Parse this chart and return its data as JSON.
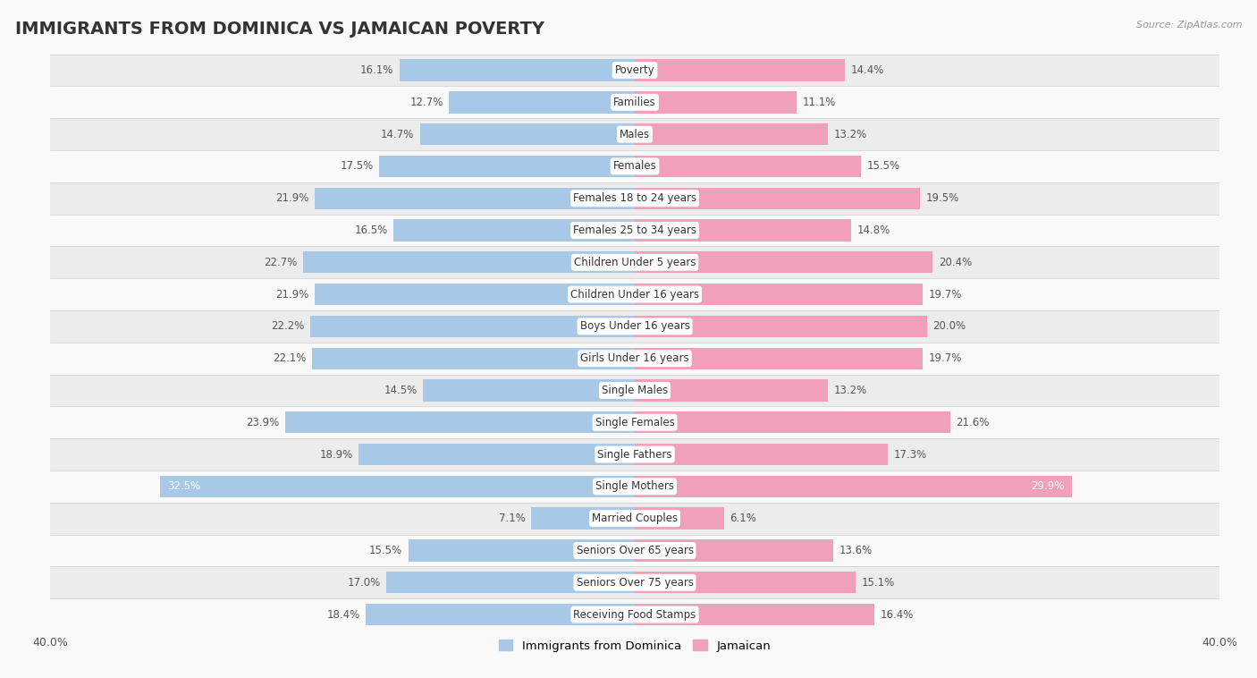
{
  "title": "IMMIGRANTS FROM DOMINICA VS JAMAICAN POVERTY",
  "source": "Source: ZipAtlas.com",
  "categories": [
    "Poverty",
    "Families",
    "Males",
    "Females",
    "Females 18 to 24 years",
    "Females 25 to 34 years",
    "Children Under 5 years",
    "Children Under 16 years",
    "Boys Under 16 years",
    "Girls Under 16 years",
    "Single Males",
    "Single Females",
    "Single Fathers",
    "Single Mothers",
    "Married Couples",
    "Seniors Over 65 years",
    "Seniors Over 75 years",
    "Receiving Food Stamps"
  ],
  "dominica_values": [
    16.1,
    12.7,
    14.7,
    17.5,
    21.9,
    16.5,
    22.7,
    21.9,
    22.2,
    22.1,
    14.5,
    23.9,
    18.9,
    32.5,
    7.1,
    15.5,
    17.0,
    18.4
  ],
  "jamaican_values": [
    14.4,
    11.1,
    13.2,
    15.5,
    19.5,
    14.8,
    20.4,
    19.7,
    20.0,
    19.7,
    13.2,
    21.6,
    17.3,
    29.9,
    6.1,
    13.6,
    15.1,
    16.4
  ],
  "dominica_color": "#a8c8e8",
  "jamaican_color": "#f0a0b8",
  "dominica_label": "Immigrants from Dominica",
  "jamaican_label": "Jamaican",
  "xlim": 40.0,
  "bar_height": 0.68,
  "bg_color": "#f9f9f9",
  "row_colors": [
    "#ececec",
    "#f9f9f9"
  ],
  "title_fontsize": 14,
  "label_fontsize": 8.5,
  "value_fontsize": 8.5,
  "axis_label_fontsize": 9,
  "text_color_inside": "#ffffff",
  "text_color_outside": "#555555"
}
